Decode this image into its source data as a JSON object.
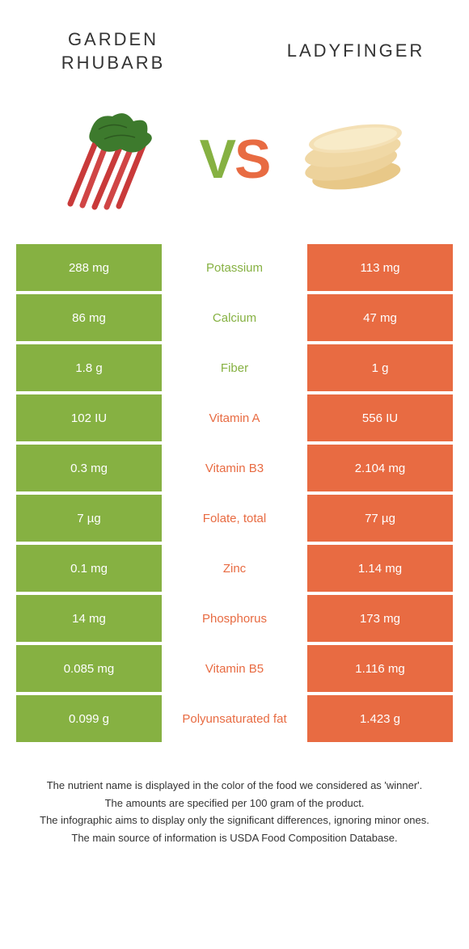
{
  "titles": {
    "left": "Garden rhubarb",
    "right": "Ladyfinger"
  },
  "vs": {
    "v": "V",
    "s": "S"
  },
  "colors": {
    "green": "#86b142",
    "orange": "#e86b42",
    "text": "#333333",
    "background": "#ffffff"
  },
  "rows": [
    {
      "left": "288 mg",
      "label": "Potassium",
      "right": "113 mg",
      "winner": "left"
    },
    {
      "left": "86 mg",
      "label": "Calcium",
      "right": "47 mg",
      "winner": "left"
    },
    {
      "left": "1.8 g",
      "label": "Fiber",
      "right": "1 g",
      "winner": "left"
    },
    {
      "left": "102 IU",
      "label": "Vitamin A",
      "right": "556 IU",
      "winner": "right"
    },
    {
      "left": "0.3 mg",
      "label": "Vitamin B3",
      "right": "2.104 mg",
      "winner": "right"
    },
    {
      "left": "7 µg",
      "label": "Folate, total",
      "right": "77 µg",
      "winner": "right"
    },
    {
      "left": "0.1 mg",
      "label": "Zinc",
      "right": "1.14 mg",
      "winner": "right"
    },
    {
      "left": "14 mg",
      "label": "Phosphorus",
      "right": "173 mg",
      "winner": "right"
    },
    {
      "left": "0.085 mg",
      "label": "Vitamin B5",
      "right": "1.116 mg",
      "winner": "right"
    },
    {
      "left": "0.099 g",
      "label": "Polyunsaturated fat",
      "right": "1.423 g",
      "winner": "right"
    }
  ],
  "footer": [
    "The nutrient name is displayed in the color of the food we considered as 'winner'.",
    "The amounts are specified per 100 gram of the product.",
    "The infographic aims to display only the significant differences, ignoring minor ones.",
    "The main source of information is USDA Food Composition Database."
  ]
}
